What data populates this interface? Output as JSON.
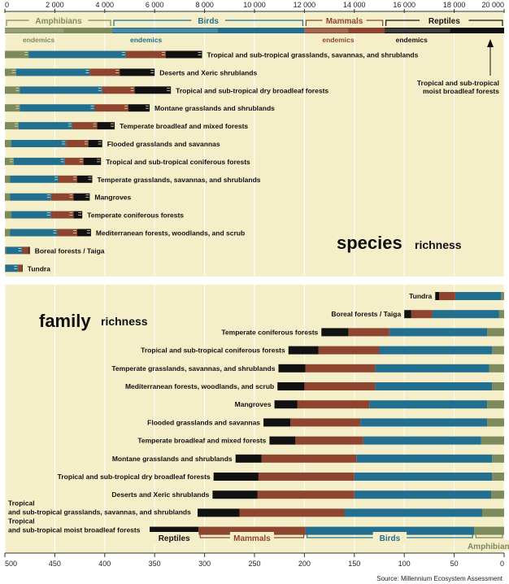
{
  "chart_data": [
    {
      "type": "bar",
      "stacked": true,
      "name": "species richness",
      "title_big": "species",
      "title_small": "richness",
      "axis_ticks": [
        "0",
        "2 000",
        "4 000",
        "6 000",
        "8 000",
        "10 000",
        "12 000",
        "14 000",
        "16 000",
        "18 000",
        "20 000"
      ],
      "xlim": [
        0,
        20000
      ],
      "groups": [
        {
          "label": "Amphibians",
          "start": 0,
          "end": 4300,
          "color": "#7d8a5c"
        },
        {
          "label": "Birds",
          "start": 4300,
          "end": 12000,
          "color": "#236f8f"
        },
        {
          "label": "Mammals",
          "start": 12000,
          "end": 15200,
          "color": "#8e4530"
        },
        {
          "label": "Reptiles",
          "start": 15200,
          "end": 20000,
          "color": "#111111"
        }
      ],
      "endemics_label": "endemics",
      "series": [
        "Amphibians",
        "Birds",
        "Mammals",
        "Reptiles"
      ],
      "categories": [
        "Tropical and sub-tropical grasslands, savannas, and shrublands",
        "Deserts and Xeric shrublands",
        "Tropical and sub-tropical dry broadleaf forests",
        "Montane grasslands and shrublands",
        "Temperate broadleaf and mixed forests",
        "Flooded grasslands and savannas",
        "Tropical and sub-tropical coniferous forests",
        "Temperate grasslands, savannas, and shrublands",
        "Mangroves",
        "Temperate coniferous forests",
        "Mediterranean forests, woodlands, and scrub",
        "Boreal forests / Taiga",
        "Tundra"
      ],
      "values": [
        [
          950,
          3900,
          1600,
          1450
        ],
        [
          450,
          2950,
          1200,
          1400
        ],
        [
          600,
          3300,
          1300,
          1450
        ],
        [
          600,
          3000,
          1350,
          850
        ],
        [
          550,
          2150,
          1000,
          700
        ],
        [
          250,
          2200,
          900,
          550
        ],
        [
          350,
          2050,
          750,
          700
        ],
        [
          200,
          1950,
          750,
          600
        ],
        [
          200,
          1650,
          900,
          650
        ],
        [
          250,
          1600,
          900,
          350
        ],
        [
          200,
          1900,
          800,
          550
        ],
        [
          50,
          650,
          250,
          50
        ],
        [
          30,
          500,
          150,
          30
        ]
      ],
      "callout": "Tropical and sub-tropical moist broadleaf forests",
      "callout_line1": "Tropical and sub-tropical",
      "callout_line2": "moist broadleaf forests"
    },
    {
      "type": "bar",
      "stacked": true,
      "reversed_axis": true,
      "name": "family richness",
      "title_big": "family",
      "title_small": "richness",
      "axis_ticks": [
        "500",
        "450",
        "400",
        "350",
        "300",
        "250",
        "200",
        "150",
        "100",
        "50",
        "0"
      ],
      "xlim": [
        500,
        0
      ],
      "groups": [
        {
          "label": "Reptiles",
          "start": 355,
          "end": 306,
          "color": "#111111"
        },
        {
          "label": "Mammals",
          "start": 306,
          "end": 199,
          "color": "#8e4530"
        },
        {
          "label": "Birds",
          "start": 199,
          "end": 30,
          "color": "#236f8f"
        },
        {
          "label": "Amphibians",
          "start": 30,
          "end": 0,
          "color": "#7d8a5c"
        }
      ],
      "series": [
        "Amphibians",
        "Birds",
        "Mammals",
        "Reptiles"
      ],
      "categories": [
        "Tundra",
        "Boreal forests / Taiga",
        "Temperate coniferous forests",
        "Tropical and sub-tropical coniferous forests",
        "Temperate grasslands, savannas, and shrublands",
        "Mediterranean forests, woodlands, and scrub",
        "Mangroves",
        "Flooded grasslands and savannas",
        "Temperate broadleaf and mixed forests",
        "Montane grasslands and shrublands",
        "Tropical and sub-tropical dry broadleaf forests",
        "Deserts and Xeric shrublands",
        "Tropical and sub-tropical grasslands, savannas, and shrublands",
        "Tropical and sub-tropical moist broadleaf forests"
      ],
      "label_lines": [
        [
          "Tundra"
        ],
        [
          "Boreal forests / Taiga"
        ],
        [
          "Temperate coniferous forests"
        ],
        [
          "Tropical and sub-tropical coniferous forests"
        ],
        [
          "Temperate grasslands, savannas, and shrublands"
        ],
        [
          "Mediterranean forests, woodlands, and scrub"
        ],
        [
          "Mangroves"
        ],
        [
          "Flooded grasslands and savannas"
        ],
        [
          "Temperate broadleaf and mixed forests"
        ],
        [
          "Montane grasslands and shrublands"
        ],
        [
          "Tropical and sub-tropical dry broadleaf forests"
        ],
        [
          "Deserts and Xeric shrublands"
        ],
        [
          "Tropical",
          "and sub-tropical grasslands, savannas, and shrublands"
        ],
        [
          "Tropical",
          "and sub-tropical moist broadleaf forests"
        ]
      ],
      "values": [
        [
          3,
          46,
          16,
          4
        ],
        [
          5,
          67,
          21,
          7
        ],
        [
          17,
          98,
          41,
          27
        ],
        [
          12,
          113,
          61,
          30
        ],
        [
          15,
          114,
          70,
          27
        ],
        [
          12,
          117,
          71,
          27
        ],
        [
          17,
          118,
          72,
          23
        ],
        [
          17,
          127,
          70,
          27
        ],
        [
          23,
          118,
          68,
          26
        ],
        [
          12,
          136,
          95,
          26
        ],
        [
          12,
          138,
          96,
          45
        ],
        [
          13,
          137,
          97,
          45
        ],
        [
          22,
          138,
          105,
          42
        ],
        [
          30,
          169,
          107,
          49
        ]
      ]
    }
  ],
  "legend_hint_note": "groups drawn as header band",
  "colors": {
    "amphibians": "#7d8a5c",
    "birds": "#236f8f",
    "mammals": "#8e4530",
    "reptiles": "#111111",
    "panel": "#f5efc9"
  },
  "source": "Source: Millennium Ecosystem Assessment"
}
